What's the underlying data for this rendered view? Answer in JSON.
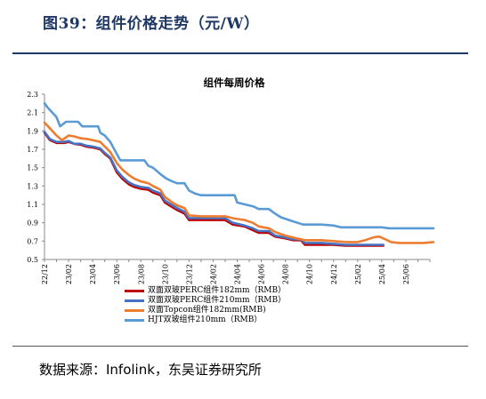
{
  "figure": {
    "title": "图39：组件价格走势（元/W）",
    "source": "数据来源：Infolink，东吴证券研究所"
  },
  "chart_data": {
    "type": "line",
    "title": "组件每周价格",
    "xlabel": "",
    "ylabel": "",
    "ylim": [
      0.5,
      2.3
    ],
    "yticks": [
      "2.3",
      "2.1",
      "1.9",
      "1.7",
      "1.5",
      "1.3",
      "1.1",
      "0.9",
      "0.7",
      "0.5"
    ],
    "xlim": [
      "2022-12",
      "2025-08"
    ],
    "xticks": [
      "22/12",
      "23/02",
      "23/04",
      "23/06",
      "23/08",
      "23/10",
      "23/12",
      "24/02",
      "24/04",
      "24/06",
      "24/08",
      "24/10",
      "24/12",
      "25/02",
      "25/04",
      "25/06"
    ],
    "grid": false,
    "legend_position": "bottom-left",
    "series": [
      {
        "name": "双面双玻PERC组件182mm（RMB）",
        "color": "#c00000",
        "points": [
          [
            "2022-12-01",
            1.88
          ],
          [
            "2022-12-15",
            1.8
          ],
          [
            "2023-01-01",
            1.77
          ],
          [
            "2023-01-20",
            1.77
          ],
          [
            "2023-02-01",
            1.78
          ],
          [
            "2023-02-15",
            1.76
          ],
          [
            "2023-03-01",
            1.75
          ],
          [
            "2023-03-15",
            1.73
          ],
          [
            "2023-04-01",
            1.72
          ],
          [
            "2023-04-20",
            1.7
          ],
          [
            "2023-05-01",
            1.65
          ],
          [
            "2023-05-15",
            1.6
          ],
          [
            "2023-06-01",
            1.45
          ],
          [
            "2023-06-15",
            1.38
          ],
          [
            "2023-07-01",
            1.32
          ],
          [
            "2023-07-15",
            1.29
          ],
          [
            "2023-08-01",
            1.27
          ],
          [
            "2023-08-20",
            1.26
          ],
          [
            "2023-09-01",
            1.23
          ],
          [
            "2023-09-20",
            1.2
          ],
          [
            "2023-10-01",
            1.12
          ],
          [
            "2023-10-20",
            1.07
          ],
          [
            "2023-11-01",
            1.04
          ],
          [
            "2023-11-20",
            1.0
          ],
          [
            "2023-12-01",
            0.93
          ],
          [
            "2024-01-01",
            0.93
          ],
          [
            "2024-02-01",
            0.93
          ],
          [
            "2024-03-01",
            0.93
          ],
          [
            "2024-03-20",
            0.88
          ],
          [
            "2024-04-20",
            0.86
          ],
          [
            "2024-05-10",
            0.82
          ],
          [
            "2024-05-25",
            0.79
          ],
          [
            "2024-06-20",
            0.79
          ],
          [
            "2024-07-05",
            0.75
          ],
          [
            "2024-08-01",
            0.73
          ],
          [
            "2024-08-20",
            0.71
          ],
          [
            "2024-09-10",
            0.71
          ],
          [
            "2024-09-20",
            0.66
          ],
          [
            "2024-11-01",
            0.66
          ],
          [
            "2024-12-01",
            0.66
          ],
          [
            "2025-01-01",
            0.65
          ],
          [
            "2025-02-01",
            0.65
          ],
          [
            "2025-03-01",
            0.65
          ],
          [
            "2025-04-05",
            0.65
          ]
        ]
      },
      {
        "name": "双面双玻PERC组件210mm（RMB）",
        "color": "#4472c4",
        "points": [
          [
            "2022-12-01",
            1.89
          ],
          [
            "2022-12-15",
            1.81
          ],
          [
            "2023-01-01",
            1.78
          ],
          [
            "2023-01-20",
            1.78
          ],
          [
            "2023-02-01",
            1.79
          ],
          [
            "2023-02-15",
            1.76
          ],
          [
            "2023-03-01",
            1.76
          ],
          [
            "2023-03-15",
            1.74
          ],
          [
            "2023-04-01",
            1.73
          ],
          [
            "2023-04-20",
            1.71
          ],
          [
            "2023-05-01",
            1.66
          ],
          [
            "2023-05-15",
            1.61
          ],
          [
            "2023-06-01",
            1.47
          ],
          [
            "2023-06-15",
            1.4
          ],
          [
            "2023-07-01",
            1.34
          ],
          [
            "2023-07-15",
            1.31
          ],
          [
            "2023-08-01",
            1.29
          ],
          [
            "2023-08-20",
            1.28
          ],
          [
            "2023-09-01",
            1.25
          ],
          [
            "2023-09-20",
            1.22
          ],
          [
            "2023-10-01",
            1.14
          ],
          [
            "2023-10-20",
            1.09
          ],
          [
            "2023-11-01",
            1.06
          ],
          [
            "2023-11-20",
            1.02
          ],
          [
            "2023-12-01",
            0.95
          ],
          [
            "2024-01-01",
            0.95
          ],
          [
            "2024-02-01",
            0.95
          ],
          [
            "2024-03-01",
            0.95
          ],
          [
            "2024-03-20",
            0.9
          ],
          [
            "2024-04-20",
            0.87
          ],
          [
            "2024-05-10",
            0.84
          ],
          [
            "2024-05-25",
            0.81
          ],
          [
            "2024-06-20",
            0.81
          ],
          [
            "2024-07-05",
            0.76
          ],
          [
            "2024-08-01",
            0.74
          ],
          [
            "2024-08-20",
            0.72
          ],
          [
            "2024-09-10",
            0.72
          ],
          [
            "2024-09-20",
            0.68
          ],
          [
            "2024-11-01",
            0.68
          ],
          [
            "2024-12-01",
            0.67
          ],
          [
            "2025-01-01",
            0.66
          ],
          [
            "2025-02-01",
            0.66
          ],
          [
            "2025-03-01",
            0.66
          ],
          [
            "2025-04-05",
            0.66
          ]
        ]
      },
      {
        "name": "双面Topcon组件182mm(RMB)",
        "color": "#ed7d31",
        "points": [
          [
            "2022-12-01",
            1.99
          ],
          [
            "2022-12-10",
            1.95
          ],
          [
            "2023-01-01",
            1.85
          ],
          [
            "2023-01-15",
            1.8
          ],
          [
            "2023-02-01",
            1.85
          ],
          [
            "2023-02-15",
            1.84
          ],
          [
            "2023-03-01",
            1.82
          ],
          [
            "2023-03-20",
            1.81
          ],
          [
            "2023-04-01",
            1.8
          ],
          [
            "2023-04-20",
            1.78
          ],
          [
            "2023-05-01",
            1.73
          ],
          [
            "2023-05-15",
            1.67
          ],
          [
            "2023-06-01",
            1.55
          ],
          [
            "2023-06-15",
            1.48
          ],
          [
            "2023-07-01",
            1.42
          ],
          [
            "2023-07-15",
            1.38
          ],
          [
            "2023-08-01",
            1.35
          ],
          [
            "2023-08-20",
            1.33
          ],
          [
            "2023-09-01",
            1.3
          ],
          [
            "2023-09-20",
            1.26
          ],
          [
            "2023-10-01",
            1.18
          ],
          [
            "2023-10-20",
            1.12
          ],
          [
            "2023-11-01",
            1.09
          ],
          [
            "2023-11-20",
            1.06
          ],
          [
            "2023-12-01",
            0.98
          ],
          [
            "2024-01-01",
            0.97
          ],
          [
            "2024-02-01",
            0.97
          ],
          [
            "2024-03-01",
            0.97
          ],
          [
            "2024-03-20",
            0.95
          ],
          [
            "2024-04-20",
            0.93
          ],
          [
            "2024-05-10",
            0.9
          ],
          [
            "2024-05-25",
            0.86
          ],
          [
            "2024-06-20",
            0.84
          ],
          [
            "2024-07-05",
            0.8
          ],
          [
            "2024-08-01",
            0.76
          ],
          [
            "2024-08-20",
            0.74
          ],
          [
            "2024-09-10",
            0.72
          ],
          [
            "2024-09-20",
            0.71
          ],
          [
            "2024-11-01",
            0.71
          ],
          [
            "2024-12-01",
            0.7
          ],
          [
            "2025-01-01",
            0.69
          ],
          [
            "2025-02-01",
            0.69
          ],
          [
            "2025-02-20",
            0.71
          ],
          [
            "2025-03-10",
            0.74
          ],
          [
            "2025-03-25",
            0.75
          ],
          [
            "2025-04-10",
            0.72
          ],
          [
            "2025-04-25",
            0.69
          ],
          [
            "2025-05-15",
            0.68
          ],
          [
            "2025-06-15",
            0.68
          ],
          [
            "2025-07-15",
            0.68
          ],
          [
            "2025-08-10",
            0.69
          ]
        ]
      },
      {
        "name": "HJT双玻组件210mm（RMB）",
        "color": "#5b9bd5",
        "points": [
          [
            "2022-12-01",
            2.2
          ],
          [
            "2022-12-10",
            2.15
          ],
          [
            "2023-01-01",
            2.05
          ],
          [
            "2023-01-10",
            1.95
          ],
          [
            "2023-01-25",
            2.0
          ],
          [
            "2023-02-25",
            2.0
          ],
          [
            "2023-03-05",
            1.95
          ],
          [
            "2023-04-15",
            1.95
          ],
          [
            "2023-04-20",
            1.88
          ],
          [
            "2023-05-01",
            1.85
          ],
          [
            "2023-05-15",
            1.78
          ],
          [
            "2023-06-01",
            1.65
          ],
          [
            "2023-06-10",
            1.58
          ],
          [
            "2023-07-01",
            1.58
          ],
          [
            "2023-08-10",
            1.58
          ],
          [
            "2023-08-20",
            1.52
          ],
          [
            "2023-09-01",
            1.5
          ],
          [
            "2023-09-20",
            1.43
          ],
          [
            "2023-10-05",
            1.38
          ],
          [
            "2023-10-20",
            1.35
          ],
          [
            "2023-11-01",
            1.33
          ],
          [
            "2023-11-20",
            1.33
          ],
          [
            "2023-12-01",
            1.25
          ],
          [
            "2023-12-15",
            1.22
          ],
          [
            "2024-01-01",
            1.2
          ],
          [
            "2024-02-01",
            1.2
          ],
          [
            "2024-03-01",
            1.2
          ],
          [
            "2024-03-25",
            1.2
          ],
          [
            "2024-04-01",
            1.12
          ],
          [
            "2024-04-20",
            1.1
          ],
          [
            "2024-05-10",
            1.08
          ],
          [
            "2024-05-25",
            1.05
          ],
          [
            "2024-06-20",
            1.05
          ],
          [
            "2024-07-05",
            1.0
          ],
          [
            "2024-07-20",
            0.96
          ],
          [
            "2024-08-10",
            0.93
          ],
          [
            "2024-09-01",
            0.9
          ],
          [
            "2024-09-15",
            0.88
          ],
          [
            "2024-11-01",
            0.88
          ],
          [
            "2024-12-01",
            0.87
          ],
          [
            "2024-12-20",
            0.85
          ],
          [
            "2025-01-15",
            0.85
          ],
          [
            "2025-03-01",
            0.85
          ],
          [
            "2025-04-01",
            0.85
          ],
          [
            "2025-04-20",
            0.84
          ],
          [
            "2025-06-01",
            0.84
          ],
          [
            "2025-07-15",
            0.84
          ],
          [
            "2025-08-10",
            0.84
          ]
        ]
      }
    ]
  }
}
